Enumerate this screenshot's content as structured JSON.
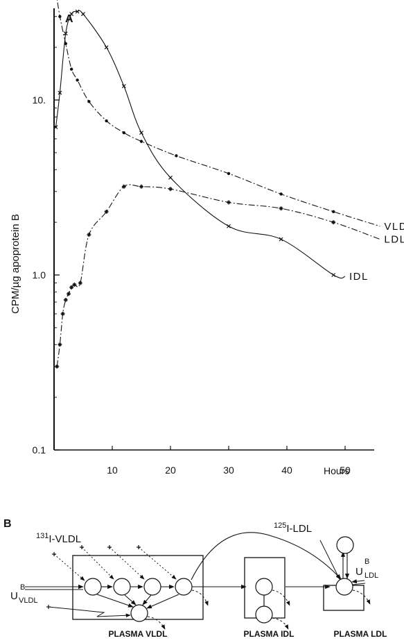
{
  "panel_a": {
    "label": "A",
    "chart_data": {
      "type": "line",
      "x_scale": "linear",
      "y_scale": "log",
      "xlabel": "Hours",
      "ylabel": "CPM/µg apoprotein B",
      "xlim": [
        0,
        58
      ],
      "ylim": [
        0.1,
        70
      ],
      "x_ticks": [
        10,
        20,
        30,
        40,
        50
      ],
      "y_ticks": [
        {
          "value": 0.1,
          "label": "0.1"
        },
        {
          "value": 1.0,
          "label": "1.0"
        },
        {
          "value": 10.0,
          "label": "10."
        }
      ],
      "series": [
        {
          "name": "VLDL",
          "marker": "dot",
          "line": "dash-dot",
          "x": [
            0.3,
            1,
            2,
            3,
            4,
            6,
            9,
            12,
            15,
            21,
            30,
            39,
            48
          ],
          "y": [
            42,
            30,
            21,
            15,
            13,
            9.8,
            7.6,
            6.5,
            5.8,
            4.8,
            3.8,
            2.9,
            2.3
          ],
          "curve_end": {
            "x": 56,
            "y": 1.9
          }
        },
        {
          "name": "LDL",
          "marker": "star",
          "line": "dash-dot",
          "x": [
            0.5,
            1,
            1.5,
            2,
            2.5,
            3,
            3.5,
            4.5,
            6,
            9,
            12,
            15,
            20,
            30,
            39,
            48
          ],
          "y": [
            0.3,
            0.4,
            0.6,
            0.72,
            0.78,
            0.85,
            0.88,
            0.9,
            1.7,
            2.3,
            3.2,
            3.2,
            3.1,
            2.6,
            2.4,
            2.0
          ],
          "curve_end": {
            "x": 56,
            "y": 1.6
          }
        },
        {
          "name": "IDL",
          "marker": "x",
          "line": "solid",
          "x": [
            0.3,
            1,
            2,
            3,
            4,
            5,
            9,
            12,
            15,
            20,
            30,
            39,
            48
          ],
          "y": [
            7,
            11,
            24,
            31,
            32,
            31,
            20,
            12,
            6.5,
            3.6,
            1.9,
            1.6,
            1.0
          ],
          "curve_end": {
            "x": 50,
            "y": 0.98
          }
        }
      ]
    }
  },
  "panel_b": {
    "label": "B",
    "inputs": {
      "vldl_tracer": {
        "mass": "131",
        "name": "I-VLDL"
      },
      "ldl_tracer": {
        "mass": "125",
        "name": "I-LDL"
      },
      "u_vldl": {
        "base": "U",
        "sup": "B",
        "sub": "VLDL"
      },
      "u_ldl": {
        "base": "U",
        "sup": "B",
        "sub": "LDL"
      }
    },
    "compartments": [
      {
        "name": "PLASMA VLDL"
      },
      {
        "name": "PLASMA IDL"
      },
      {
        "name": "PLASMA LDL"
      }
    ]
  },
  "colors": {
    "ink": "#111111",
    "background": "#ffffff"
  }
}
